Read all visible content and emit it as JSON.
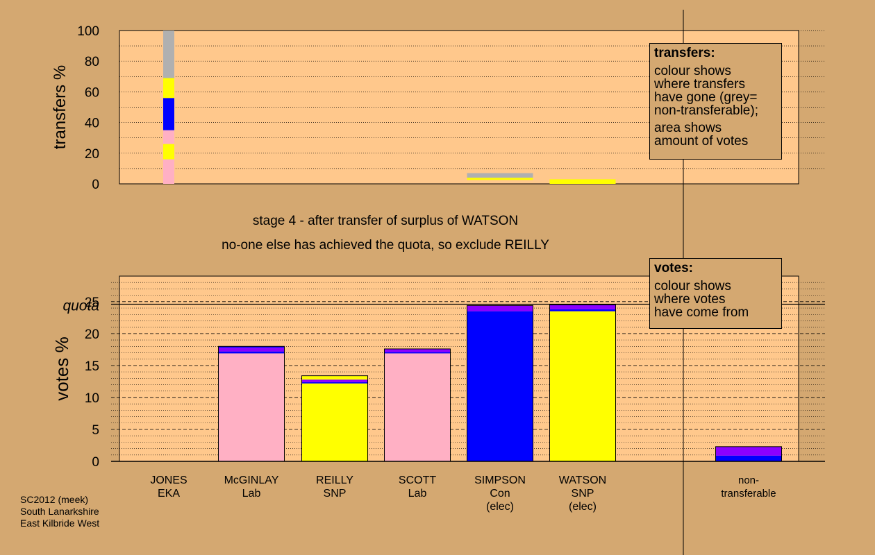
{
  "source": [
    "SC2012 (meek)",
    "South Lanarkshire",
    "East Kilbride West"
  ],
  "stage_text": "stage 4 - after transfer of surplus of WATSON",
  "note_text": "no-one else has achieved the quota, so exclude REILLY",
  "colors": {
    "pink": "#ffb0c4",
    "yellow": "#ffff00",
    "blue": "#0000ff",
    "purple": "#8c00ff",
    "grey": "#b0b0b0",
    "plot_bg": "#ffc88c",
    "page_bg": "#d4a871"
  },
  "legend_transfers": {
    "title": "transfers:",
    "lines": [
      "colour shows",
      "where transfers",
      "have gone (grey=",
      "non-transferable);"
    ],
    "lines2": [
      "area shows",
      "amount of votes"
    ]
  },
  "legend_votes": {
    "title": "votes:",
    "lines": [
      "colour shows",
      "where votes",
      "have come from"
    ]
  },
  "chart_data": [
    {
      "type": "bar",
      "stacked": true,
      "ylabel": "transfers %",
      "ylim": [
        0,
        100
      ],
      "yticks": [
        0,
        20,
        40,
        60,
        80,
        100
      ],
      "categories": [
        "JONES",
        "McGINLAY",
        "REILLY",
        "SCOTT",
        "SIMPSON",
        "WATSON",
        "non-transferable"
      ],
      "bars": [
        {
          "category": "JONES",
          "segments": [
            {
              "color": "pink",
              "from": 0,
              "to": 16
            },
            {
              "color": "yellow",
              "from": 16,
              "to": 26
            },
            {
              "color": "pink",
              "from": 26,
              "to": 35
            },
            {
              "color": "blue",
              "from": 35,
              "to": 56
            },
            {
              "color": "yellow",
              "from": 56,
              "to": 69
            },
            {
              "color": "grey",
              "from": 69,
              "to": 100
            }
          ]
        },
        {
          "category": "SIMPSON",
          "segments": [
            {
              "color": "yellow",
              "from": 2.5,
              "to": 4
            },
            {
              "color": "grey",
              "from": 4,
              "to": 7
            }
          ]
        },
        {
          "category": "WATSON",
          "segments": [
            {
              "color": "yellow",
              "from": 0,
              "to": 3
            }
          ]
        }
      ]
    },
    {
      "type": "bar",
      "stacked": true,
      "ylabel": "votes %",
      "ylim": [
        0,
        29
      ],
      "yticks": [
        0,
        5,
        10,
        15,
        20,
        25
      ],
      "quota": 24.6,
      "quota_label": "quota",
      "categories": [
        {
          "name": "JONES",
          "party": "EKA",
          "extra": ""
        },
        {
          "name": "McGINLAY",
          "party": "Lab",
          "extra": ""
        },
        {
          "name": "REILLY",
          "party": "SNP",
          "extra": ""
        },
        {
          "name": "SCOTT",
          "party": "Lab",
          "extra": ""
        },
        {
          "name": "SIMPSON",
          "party": "Con",
          "extra": "(elec)"
        },
        {
          "name": "WATSON",
          "party": "SNP",
          "extra": "(elec)"
        },
        {
          "name": "non-",
          "party": "transferable",
          "extra": ""
        }
      ],
      "bars": [
        {
          "category": "JONES",
          "segments": [
            {
              "color": "pink",
              "from": 0,
              "to": 0.05
            }
          ]
        },
        {
          "category": "McGINLAY",
          "segments": [
            {
              "color": "pink",
              "from": 0,
              "to": 16.9
            },
            {
              "color": "blue",
              "from": 16.9,
              "to": 17.2
            },
            {
              "color": "purple",
              "from": 17.2,
              "to": 17.8
            },
            {
              "color": "blue",
              "from": 17.8,
              "to": 18.0
            }
          ]
        },
        {
          "category": "REILLY",
          "segments": [
            {
              "color": "yellow",
              "from": 0,
              "to": 12.2
            },
            {
              "color": "blue",
              "from": 12.2,
              "to": 12.4
            },
            {
              "color": "purple",
              "from": 12.4,
              "to": 12.8
            },
            {
              "color": "yellow",
              "from": 12.8,
              "to": 13.4
            }
          ]
        },
        {
          "category": "SCOTT",
          "segments": [
            {
              "color": "pink",
              "from": 0,
              "to": 16.9
            },
            {
              "color": "blue",
              "from": 16.9,
              "to": 17.1
            },
            {
              "color": "purple",
              "from": 17.1,
              "to": 17.6
            }
          ]
        },
        {
          "category": "SIMPSON",
          "segments": [
            {
              "color": "blue",
              "from": 0,
              "to": 23.5
            },
            {
              "color": "purple",
              "from": 23.5,
              "to": 24.4
            }
          ]
        },
        {
          "category": "WATSON",
          "segments": [
            {
              "color": "yellow",
              "from": 0,
              "to": 23.5
            },
            {
              "color": "blue",
              "from": 23.5,
              "to": 23.8
            },
            {
              "color": "purple",
              "from": 23.8,
              "to": 24.5
            }
          ]
        },
        {
          "category": "non-transferable",
          "segments": [
            {
              "color": "blue",
              "from": 0,
              "to": 0.9
            },
            {
              "color": "purple",
              "from": 0.9,
              "to": 2.3
            }
          ]
        }
      ]
    }
  ]
}
